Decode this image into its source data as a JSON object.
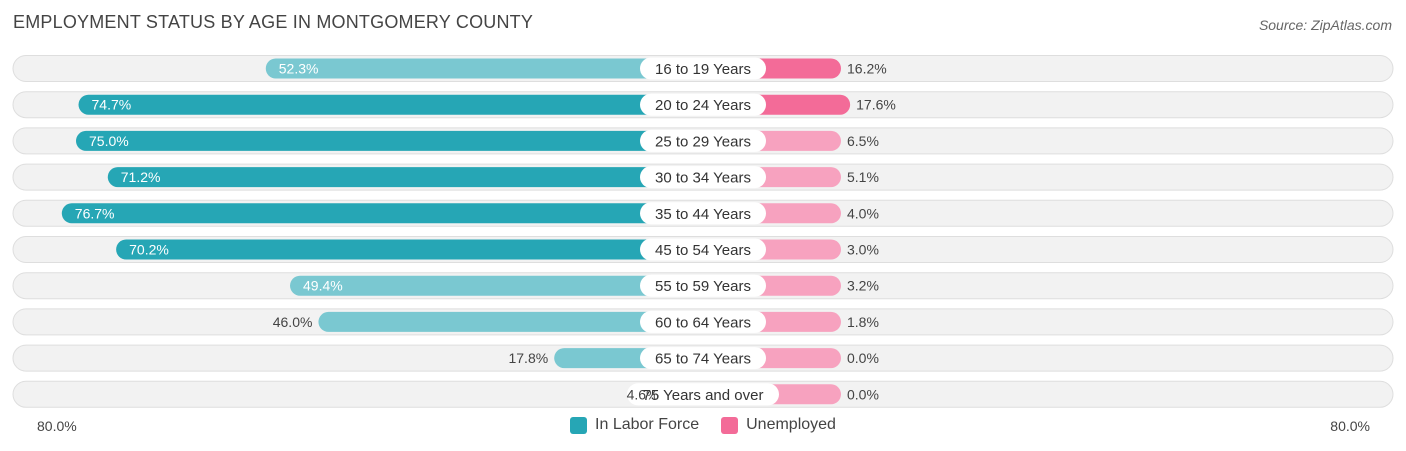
{
  "title": "EMPLOYMENT STATUS BY AGE IN MONTGOMERY COUNTY",
  "source": "Source: ZipAtlas.com",
  "colors": {
    "labor_strong": "#26a6b5",
    "labor_light": "#7ac8d1",
    "unemp_strong": "#f36b98",
    "unemp_light": "#f7a2bf",
    "row_bg": "#f2f2f2",
    "row_border": "#dedede"
  },
  "chart_data": {
    "type": "bar",
    "orientation": "horizontal-diverging",
    "title": "EMPLOYMENT STATUS BY AGE IN MONTGOMERY COUNTY",
    "categories": [
      "16 to 19 Years",
      "20 to 24 Years",
      "25 to 29 Years",
      "30 to 34 Years",
      "35 to 44 Years",
      "45 to 54 Years",
      "55 to 59 Years",
      "60 to 64 Years",
      "65 to 74 Years",
      "75 Years and over"
    ],
    "series": [
      {
        "name": "In Labor Force",
        "values": [
          52.3,
          74.7,
          75.0,
          71.2,
          76.7,
          70.2,
          49.4,
          46.0,
          17.8,
          4.6
        ],
        "labels": [
          "52.3%",
          "74.7%",
          "75.0%",
          "71.2%",
          "76.7%",
          "70.2%",
          "49.4%",
          "46.0%",
          "17.8%",
          "4.6%"
        ]
      },
      {
        "name": "Unemployed",
        "values": [
          16.2,
          17.6,
          6.5,
          5.1,
          4.0,
          3.0,
          3.2,
          1.8,
          0.0,
          0.0
        ],
        "labels": [
          "16.2%",
          "17.6%",
          "6.5%",
          "5.1%",
          "4.0%",
          "3.0%",
          "3.2%",
          "1.8%",
          "0.0%",
          "0.0%"
        ]
      }
    ],
    "xlim": [
      0,
      80
    ],
    "axis_left_label": "80.0%",
    "axis_right_label": "80.0%",
    "legend_position": "bottom-center"
  }
}
